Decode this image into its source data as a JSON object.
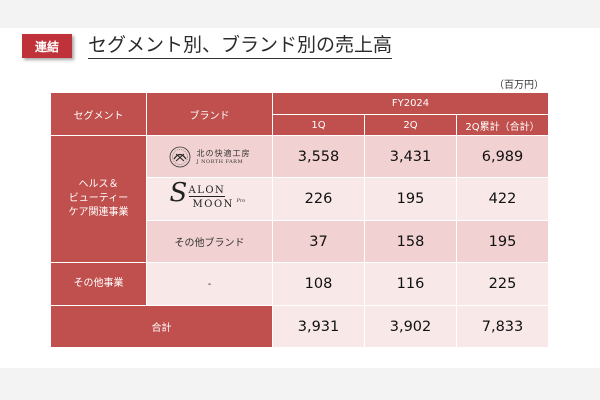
{
  "header": {
    "badge": "連結",
    "title": "セグメント別、ブランド別の売上高",
    "unit": "（百万円）"
  },
  "table": {
    "col_segment": "セグメント",
    "col_brand": "ブランド",
    "period": "FY2024",
    "quarters": [
      "1Q",
      "2Q",
      "2Q累計（合計）"
    ],
    "segments": {
      "health_beauty": "ヘルス＆\nビューティー\nケア関連事業",
      "other": "その他事業"
    },
    "brands": {
      "jnf": {
        "jp": "北の快適工房",
        "en": "J NORTH FARM"
      },
      "salon": {
        "s": "S",
        "line1": "ALON",
        "line2": "MOON",
        "pro": "Pro"
      },
      "other_brand": "その他ブランド",
      "other_dash": "-"
    },
    "rows": [
      [
        "3,558",
        "3,431",
        "6,989"
      ],
      [
        "226",
        "195",
        "422"
      ],
      [
        "37",
        "158",
        "195"
      ],
      [
        "108",
        "116",
        "225"
      ]
    ],
    "total_label": "合計",
    "total": [
      "3,931",
      "3,902",
      "7,833"
    ]
  }
}
